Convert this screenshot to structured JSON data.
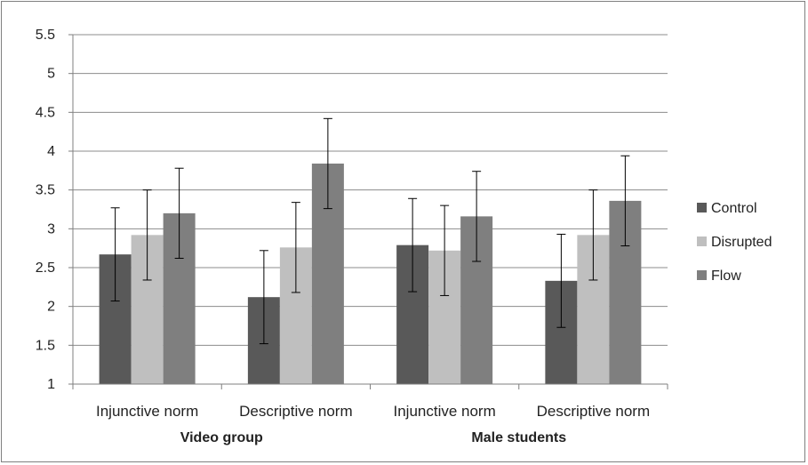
{
  "chart_data": {
    "type": "bar",
    "title": "",
    "xlabel": "",
    "ylabel": "",
    "ylim": [
      1,
      5.5
    ],
    "yticks": [
      "1",
      "1.5",
      "2",
      "2.5",
      "3",
      "3.5",
      "4",
      "4.5",
      "5",
      "5.5"
    ],
    "grid": true,
    "legend_position": "right",
    "groups": [
      {
        "name": "Video group",
        "categories": [
          "Injunctive norm",
          "Descriptive norm"
        ]
      },
      {
        "name": "Male students",
        "categories": [
          "Injunctive norm",
          "Descriptive norm"
        ]
      }
    ],
    "categories": [
      "Injunctive norm",
      "Descriptive norm",
      "Injunctive norm",
      "Descriptive norm"
    ],
    "series": [
      {
        "name": "Control",
        "color": "#595959",
        "values": [
          2.67,
          2.12,
          2.79,
          2.33
        ],
        "error": [
          0.6,
          0.6,
          0.6,
          0.6
        ]
      },
      {
        "name": "Disrupted",
        "color": "#bfbfbf",
        "values": [
          2.92,
          2.76,
          2.72,
          2.92
        ],
        "error": [
          0.58,
          0.58,
          0.58,
          0.58
        ]
      },
      {
        "name": "Flow",
        "color": "#7f7f7f",
        "values": [
          3.2,
          3.84,
          3.16,
          3.36
        ],
        "error": [
          0.58,
          0.58,
          0.58,
          0.58
        ]
      }
    ]
  }
}
